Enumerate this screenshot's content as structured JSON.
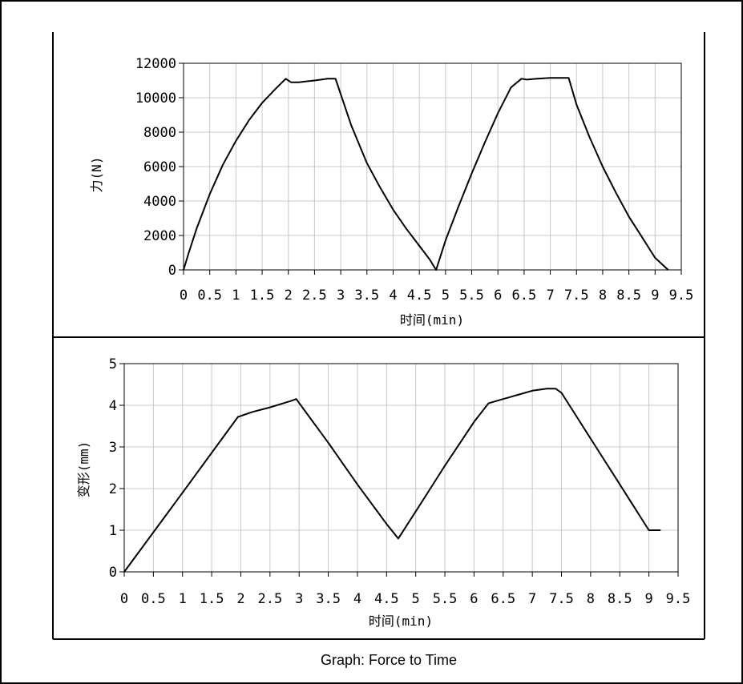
{
  "caption": "Graph: Force to Time",
  "chart_data": [
    {
      "type": "line",
      "title": "",
      "xlabel": "时间(min)",
      "ylabel": "力(N)",
      "xlim": [
        0,
        9.5
      ],
      "ylim": [
        0,
        12000
      ],
      "x_ticks": [
        "0",
        "0.5",
        "1",
        "1.5",
        "2",
        "2.5",
        "3",
        "3.5",
        "4",
        "4.5",
        "5",
        "5.5",
        "6",
        "6.5",
        "7",
        "7.5",
        "8",
        "8.5",
        "9",
        "9.5"
      ],
      "y_ticks": [
        "0",
        "2000",
        "4000",
        "6000",
        "8000",
        "10000",
        "12000"
      ],
      "grid": true,
      "series": [
        {
          "x": [
            0,
            0.1,
            0.25,
            0.5,
            0.75,
            1.0,
            1.25,
            1.5,
            1.75,
            1.95,
            2.05,
            2.2,
            2.5,
            2.75,
            2.9,
            3.2,
            3.5,
            3.75,
            4.0,
            4.25,
            4.5,
            4.7,
            4.82,
            5.0,
            5.25,
            5.5,
            5.75,
            6.0,
            6.25,
            6.45,
            6.55,
            6.75,
            7.0,
            7.2,
            7.35,
            7.5,
            7.75,
            8.0,
            8.25,
            8.5,
            8.75,
            9.0,
            9.25
          ],
          "y": [
            0,
            1000,
            2400,
            4400,
            6100,
            7500,
            8700,
            9700,
            10500,
            11100,
            10900,
            10900,
            11000,
            11100,
            11100,
            8400,
            6200,
            4800,
            3500,
            2400,
            1400,
            600,
            0,
            1700,
            3700,
            5600,
            7400,
            9100,
            10600,
            11100,
            11050,
            11100,
            11150,
            11150,
            11150,
            9600,
            7700,
            6000,
            4500,
            3100,
            1900,
            700,
            0
          ]
        }
      ]
    },
    {
      "type": "line",
      "title": "",
      "xlabel": "时间(min)",
      "ylabel": "变形(mm)",
      "xlim": [
        0,
        9.5
      ],
      "ylim": [
        0,
        5
      ],
      "x_ticks": [
        "0",
        "0.5",
        "1",
        "1.5",
        "2",
        "2.5",
        "3",
        "3.5",
        "4",
        "4.5",
        "5",
        "5.5",
        "6",
        "6.5",
        "7",
        "7.5",
        "8",
        "8.5",
        "9",
        "9.5"
      ],
      "y_ticks": [
        "0",
        "1",
        "2",
        "3",
        "4",
        "5"
      ],
      "grid": true,
      "series": [
        {
          "x": [
            0,
            1.0,
            1.95,
            2.2,
            2.5,
            2.85,
            2.95,
            3.5,
            4.0,
            4.5,
            4.7,
            5.0,
            5.5,
            6.0,
            6.25,
            6.5,
            6.75,
            7.0,
            7.25,
            7.4,
            7.5,
            8.0,
            8.5,
            9.0,
            9.2
          ],
          "y": [
            0,
            1.9,
            3.72,
            3.84,
            3.95,
            4.1,
            4.15,
            3.1,
            2.1,
            1.15,
            0.8,
            1.45,
            2.55,
            3.6,
            4.05,
            4.15,
            4.25,
            4.35,
            4.4,
            4.4,
            4.3,
            3.2,
            2.1,
            1.0,
            1.0
          ]
        }
      ]
    }
  ]
}
